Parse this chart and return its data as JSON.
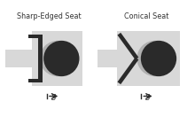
{
  "title_left": "Sharp-Edged Seat",
  "title_right": "Conical Seat",
  "bg_color": "#ffffff",
  "seat_bg": "#d8d8d8",
  "poppet_shadow": "#b0b0b0",
  "poppet_color": "#2a2a2a",
  "seat_color": "#2a2a2a",
  "arrow_color": "#2a2a2a",
  "title_fontsize": 5.8,
  "label_fontsize": 6.0,
  "fig_width": 2.2,
  "fig_height": 1.32
}
